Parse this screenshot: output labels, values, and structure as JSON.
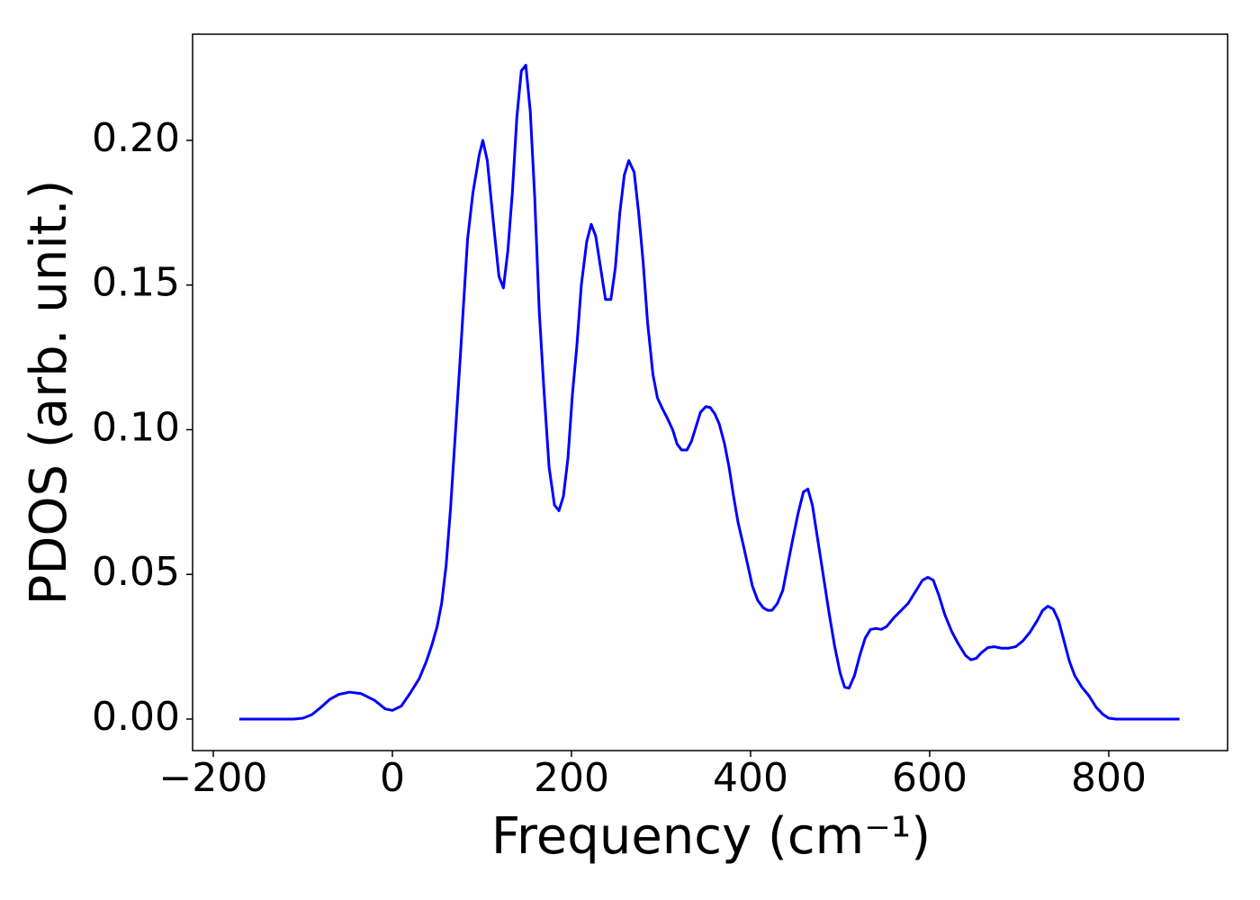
{
  "chart_data": {
    "type": "line",
    "xlabel": "Frequency (cm⁻¹)",
    "ylabel": "PDOS (arb. unit.)",
    "xlim": [
      -223.1,
      932.7
    ],
    "ylim": [
      -0.0109,
      0.2367
    ],
    "xticks": [
      {
        "value": -200,
        "label": "−200"
      },
      0,
      200,
      400,
      600,
      800
    ],
    "yticks": [
      {
        "value": 0,
        "label": "0.00"
      },
      0.05,
      {
        "value": 0.1,
        "label": "0.10"
      },
      0.15,
      {
        "value": 0.2,
        "label": "0.20"
      }
    ],
    "x": [
      -171,
      -140,
      -110,
      -100,
      -90,
      -80,
      -70,
      -60,
      -48,
      -35,
      -20,
      -8,
      0,
      10,
      20,
      30,
      38,
      44,
      50,
      55,
      60,
      65,
      76,
      84,
      90,
      97,
      101,
      106,
      113,
      119,
      124,
      129,
      134,
      139,
      144,
      149,
      154,
      159,
      164,
      169,
      175,
      181,
      186,
      191,
      196,
      201,
      206,
      211,
      217,
      222,
      227,
      233,
      238,
      244,
      249,
      254,
      259,
      264,
      270,
      275,
      280,
      285,
      291,
      296,
      302,
      307,
      313,
      318,
      323,
      329,
      334,
      339,
      344,
      350,
      355,
      360,
      365,
      371,
      376,
      381,
      386,
      392,
      397,
      402,
      408,
      414,
      419,
      424,
      430,
      436,
      441,
      447,
      453,
      459,
      464,
      469,
      475,
      481,
      488,
      494,
      500,
      505,
      510,
      516,
      522,
      528,
      534,
      540,
      546,
      552,
      560,
      568,
      576,
      584,
      592,
      598,
      604,
      610,
      617,
      625,
      632,
      640,
      646,
      652,
      658,
      665,
      672,
      680,
      688,
      696,
      704,
      712,
      720,
      726,
      732,
      738,
      744,
      750,
      756,
      762,
      770,
      778,
      786,
      794,
      800,
      808,
      840,
      879
    ],
    "series": [
      {
        "name": "PDOS",
        "color": "#0000ff",
        "values": [
          0,
          0,
          0,
          0.0003,
          0.0015,
          0.004,
          0.0068,
          0.0085,
          0.0093,
          0.0088,
          0.0065,
          0.0035,
          0.003,
          0.0045,
          0.009,
          0.014,
          0.02,
          0.0255,
          0.032,
          0.04,
          0.053,
          0.073,
          0.126,
          0.166,
          0.182,
          0.195,
          0.2,
          0.193,
          0.171,
          0.153,
          0.149,
          0.162,
          0.182,
          0.208,
          0.224,
          0.226,
          0.21,
          0.18,
          0.141,
          0.115,
          0.087,
          0.074,
          0.072,
          0.077,
          0.09,
          0.112,
          0.129,
          0.15,
          0.165,
          0.171,
          0.167,
          0.155,
          0.145,
          0.145,
          0.156,
          0.175,
          0.188,
          0.193,
          0.189,
          0.175,
          0.158,
          0.137,
          0.119,
          0.111,
          0.107,
          0.104,
          0.1,
          0.095,
          0.093,
          0.093,
          0.096,
          0.101,
          0.106,
          0.108,
          0.1077,
          0.1055,
          0.102,
          0.095,
          0.087,
          0.077,
          0.068,
          0.06,
          0.053,
          0.046,
          0.041,
          0.0385,
          0.0376,
          0.0376,
          0.04,
          0.0445,
          0.0525,
          0.062,
          0.071,
          0.0785,
          0.0795,
          0.074,
          0.062,
          0.05,
          0.036,
          0.025,
          0.016,
          0.011,
          0.0107,
          0.015,
          0.022,
          0.028,
          0.031,
          0.0313,
          0.031,
          0.032,
          0.035,
          0.0375,
          0.04,
          0.044,
          0.048,
          0.049,
          0.048,
          0.043,
          0.036,
          0.03,
          0.026,
          0.022,
          0.0205,
          0.021,
          0.023,
          0.0247,
          0.025,
          0.0245,
          0.0245,
          0.025,
          0.027,
          0.03,
          0.034,
          0.0375,
          0.039,
          0.038,
          0.034,
          0.027,
          0.02,
          0.015,
          0.011,
          0.008,
          0.004,
          0.0015,
          0.0003,
          0,
          0,
          0
        ]
      }
    ]
  }
}
